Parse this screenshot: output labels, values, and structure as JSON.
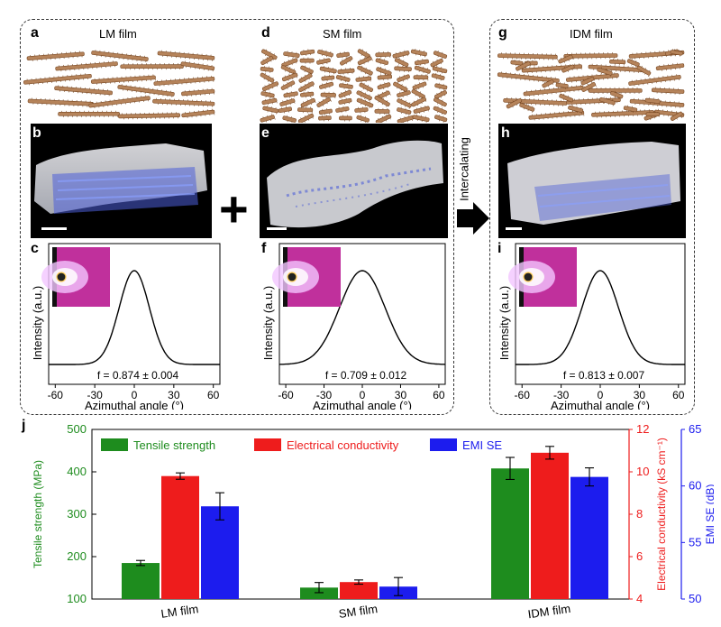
{
  "panels": [
    {
      "id": "lm",
      "film_label": "LM film",
      "letters": {
        "top": "a",
        "middle": "b",
        "bottom": "c"
      },
      "f_value": "f = 0.874 ± 0.004",
      "flake_size": "long"
    },
    {
      "id": "sm",
      "film_label": "SM film",
      "letters": {
        "top": "d",
        "middle": "e",
        "bottom": "f"
      },
      "f_value": "f = 0.709 ± 0.012",
      "flake_size": "short"
    },
    {
      "id": "idm",
      "film_label": "IDM film",
      "letters": {
        "top": "g",
        "middle": "h",
        "bottom": "i"
      },
      "f_value": "f = 0.813 ± 0.007",
      "flake_size": "mixed"
    }
  ],
  "arrow_label": "Intercalating",
  "plus_sign": "+",
  "bar_panel_letter": "j",
  "colors": {
    "tensile": "#1e8c1e",
    "conductivity": "#ee1c1c",
    "emi": "#1c1cee",
    "flake": "#b5835a",
    "flake_edge": "#7a4a25",
    "model_blue": "#3d4fd6"
  },
  "chart_data": [
    {
      "type": "line",
      "panel": "c",
      "xlabel": "Azimuthal angle (°)",
      "ylabel": "Intensity (a.u.)",
      "x_ticks": [
        -60,
        -30,
        0,
        30,
        60
      ],
      "xlim": [
        -65,
        65
      ],
      "peak_center": 0,
      "fwhm_deg": 27,
      "annotation": "f = 0.874 ± 0.004"
    },
    {
      "type": "line",
      "panel": "f",
      "xlabel": "Azimuthal angle (°)",
      "ylabel": "Intensity (a.u.)",
      "x_ticks": [
        -60,
        -30,
        0,
        30,
        60
      ],
      "xlim": [
        -65,
        65
      ],
      "peak_center": 0,
      "fwhm_deg": 42,
      "annotation": "f = 0.709 ± 0.012"
    },
    {
      "type": "line",
      "panel": "i",
      "xlabel": "Azimuthal angle (°)",
      "ylabel": "Intensity (a.u.)",
      "x_ticks": [
        -60,
        -30,
        0,
        30,
        60
      ],
      "xlim": [
        -65,
        65
      ],
      "peak_center": 0,
      "fwhm_deg": 33,
      "annotation": "f = 0.813 ± 0.007"
    },
    {
      "type": "bar",
      "panel": "j",
      "categories": [
        "LM film",
        "SM film",
        "IDM film"
      ],
      "series": [
        {
          "name": "Tensile strength",
          "axis": "left",
          "values": [
            185,
            127,
            408
          ],
          "errors": [
            6,
            12,
            26
          ]
        },
        {
          "name": "Electrical conductivity",
          "axis": "right1",
          "values": [
            9.8,
            4.8,
            10.9
          ],
          "errors": [
            0.15,
            0.1,
            0.3
          ]
        },
        {
          "name": "EMI SE",
          "axis": "right2",
          "values": [
            58.2,
            51.1,
            60.8
          ],
          "errors": [
            1.2,
            0.8,
            0.8
          ]
        }
      ],
      "axes": {
        "left": {
          "label": "Tensile strength (MPa)",
          "ylim": [
            100,
            500
          ],
          "ticks": [
            100,
            200,
            300,
            400,
            500
          ]
        },
        "right1": {
          "label": "Electrical conductivity (kS cm⁻¹)",
          "ylim": [
            4,
            12
          ],
          "ticks": [
            4,
            6,
            8,
            10,
            12
          ]
        },
        "right2": {
          "label": "EMI SE (dB)",
          "ylim": [
            50,
            65
          ],
          "ticks": [
            50,
            55,
            60,
            65
          ]
        }
      },
      "legend_position": "top-left"
    }
  ]
}
